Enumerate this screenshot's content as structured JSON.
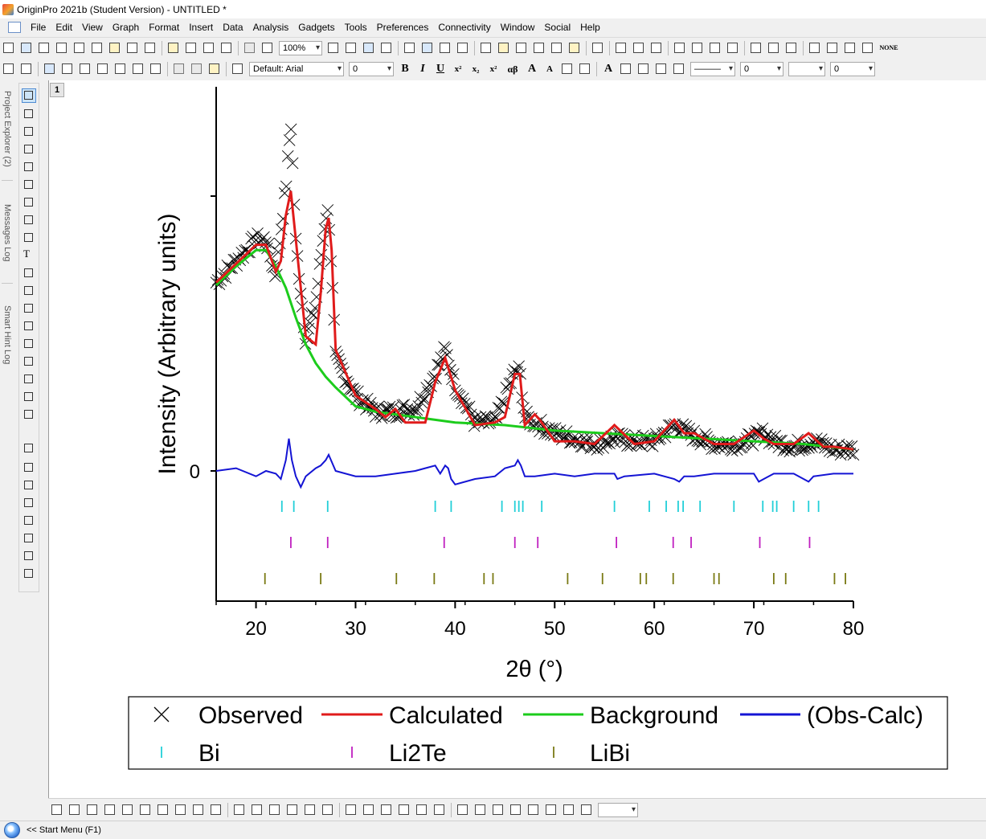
{
  "window": {
    "title": "OriginPro 2021b (Student Version) - UNTITLED *"
  },
  "menu": [
    "File",
    "Edit",
    "View",
    "Graph",
    "Format",
    "Insert",
    "Data",
    "Analysis",
    "Gadgets",
    "Tools",
    "Preferences",
    "Connectivity",
    "Window",
    "Social",
    "Help"
  ],
  "toolbar": {
    "zoom": "100%",
    "font_name": "Default: Arial",
    "font_size": "0",
    "line_width": "0",
    "pattern_size": "0",
    "none_label": "NONE"
  },
  "side_tabs": [
    "Project Explorer (2)",
    "Messages Log",
    "Smart Hint Log"
  ],
  "graph": {
    "page_number": "1"
  },
  "status": {
    "start_menu": "<< Start Menu (F1)"
  },
  "colors": {
    "observed": "#000000",
    "calculated": "#e01b1b",
    "background": "#1ccc1c",
    "difference": "#1414d4",
    "bi_ticks": "#22cfd8",
    "li2te_ticks": "#c020c0",
    "libi_ticks": "#7a7a14"
  },
  "chart_data": {
    "type": "line",
    "xlabel": "2θ (°)",
    "ylabel": "Intensity (Arbitrary units)",
    "xlim": [
      16,
      80
    ],
    "xticks": [
      20,
      30,
      40,
      50,
      60,
      70,
      80
    ],
    "yticks": [
      0
    ],
    "legend_placement": "below",
    "series": [
      {
        "name": "Observed",
        "style": "cross",
        "x": [
          16,
          18,
          20,
          21,
          22,
          23,
          23.5,
          24,
          25,
          26,
          27,
          27.3,
          28,
          30,
          32,
          34,
          35,
          36,
          38,
          39,
          40,
          42,
          44,
          46,
          46.5,
          47,
          48,
          50,
          52,
          54,
          56,
          58,
          60,
          62,
          64,
          66,
          68,
          70,
          71,
          72,
          74,
          76,
          78,
          80
        ],
        "y": [
          0.7,
          0.78,
          0.86,
          0.86,
          0.72,
          1.05,
          1.3,
          0.85,
          0.48,
          0.62,
          0.95,
          0.96,
          0.42,
          0.28,
          0.22,
          0.22,
          0.23,
          0.23,
          0.36,
          0.45,
          0.32,
          0.18,
          0.18,
          0.37,
          0.37,
          0.2,
          0.18,
          0.14,
          0.12,
          0.1,
          0.12,
          0.11,
          0.11,
          0.17,
          0.13,
          0.1,
          0.1,
          0.12,
          0.14,
          0.11,
          0.09,
          0.11,
          0.08,
          0.08
        ]
      },
      {
        "name": "Calculated",
        "style": "line",
        "x": [
          16,
          18,
          20,
          21,
          22,
          22.5,
          23,
          23.5,
          24,
          25,
          26,
          26.5,
          27,
          27.3,
          27.6,
          28,
          30,
          32,
          33,
          34,
          35,
          37,
          38,
          39,
          40,
          42,
          44,
          45,
          46,
          46.5,
          47,
          48,
          48.5,
          50,
          52,
          54,
          56,
          58,
          60,
          62,
          63,
          64,
          66,
          68,
          70,
          71,
          72,
          74,
          75.5,
          77,
          78,
          80
        ],
        "y": [
          0.7,
          0.77,
          0.84,
          0.84,
          0.74,
          0.78,
          0.95,
          1.04,
          0.86,
          0.5,
          0.47,
          0.66,
          0.9,
          0.94,
          0.82,
          0.45,
          0.28,
          0.23,
          0.2,
          0.23,
          0.18,
          0.18,
          0.33,
          0.42,
          0.3,
          0.17,
          0.18,
          0.2,
          0.36,
          0.36,
          0.17,
          0.21,
          0.19,
          0.11,
          0.11,
          0.1,
          0.17,
          0.1,
          0.11,
          0.19,
          0.14,
          0.14,
          0.1,
          0.1,
          0.15,
          0.12,
          0.1,
          0.1,
          0.14,
          0.09,
          0.09,
          0.08
        ]
      },
      {
        "name": "Background",
        "style": "line",
        "x": [
          16,
          18,
          20,
          21,
          22,
          23,
          24,
          25,
          26,
          27,
          28,
          30,
          32,
          34,
          36,
          40,
          45,
          50,
          55,
          60,
          65,
          70,
          75,
          80
        ],
        "y": [
          0.69,
          0.76,
          0.82,
          0.82,
          0.76,
          0.68,
          0.57,
          0.47,
          0.4,
          0.35,
          0.31,
          0.24,
          0.22,
          0.21,
          0.2,
          0.18,
          0.17,
          0.15,
          0.14,
          0.13,
          0.12,
          0.11,
          0.1,
          0.08
        ]
      },
      {
        "name": "(Obs-Calc)",
        "style": "line",
        "x": [
          16,
          18,
          20,
          21,
          22,
          22.5,
          23,
          23.3,
          23.6,
          24,
          24.5,
          25,
          26,
          26.5,
          27,
          27.3,
          28,
          30,
          32,
          34,
          36,
          37,
          38,
          38.5,
          39,
          39.3,
          39.6,
          40,
          42,
          44,
          45,
          46,
          46.3,
          46.6,
          47,
          48,
          50,
          52,
          54,
          56,
          56.3,
          57,
          60,
          62,
          62.5,
          63,
          64,
          66,
          68,
          70,
          70.5,
          71,
          72,
          74,
          75.5,
          76,
          78,
          80
        ],
        "y": [
          0,
          0.01,
          -0.02,
          0.0,
          -0.01,
          -0.03,
          0.04,
          0.12,
          0.04,
          -0.02,
          -0.06,
          -0.02,
          0.01,
          0.02,
          0.04,
          0.06,
          0.0,
          -0.02,
          -0.02,
          -0.01,
          0.0,
          0.01,
          0.02,
          -0.01,
          0.02,
          0.01,
          -0.03,
          -0.05,
          -0.03,
          -0.02,
          0.01,
          0.02,
          0.04,
          0.02,
          -0.02,
          -0.02,
          -0.01,
          -0.02,
          -0.01,
          -0.01,
          -0.03,
          -0.02,
          -0.01,
          -0.03,
          -0.04,
          -0.02,
          -0.02,
          -0.01,
          -0.01,
          -0.01,
          -0.04,
          -0.03,
          -0.01,
          -0.01,
          -0.04,
          -0.02,
          -0.01,
          -0.01
        ]
      }
    ],
    "reflections": [
      {
        "name": "Bi",
        "x": [
          22.6,
          23.8,
          27.2,
          38.0,
          39.6,
          44.7,
          46.0,
          46.4,
          46.8,
          48.7,
          56.0,
          59.5,
          61.2,
          62.4,
          62.9,
          64.6,
          68.0,
          70.9,
          71.9,
          72.3,
          74.0,
          75.5,
          76.5
        ]
      },
      {
        "name": "Li2Te",
        "x": [
          23.5,
          27.2,
          38.9,
          46.0,
          48.3,
          56.2,
          61.9,
          63.7,
          70.6,
          75.6
        ]
      },
      {
        "name": "LiBi",
        "x": [
          20.9,
          26.5,
          34.1,
          37.9,
          42.9,
          43.8,
          51.3,
          54.8,
          58.6,
          59.2,
          61.9,
          66.0,
          66.5,
          72.0,
          73.2,
          78.1,
          79.2
        ]
      }
    ]
  }
}
